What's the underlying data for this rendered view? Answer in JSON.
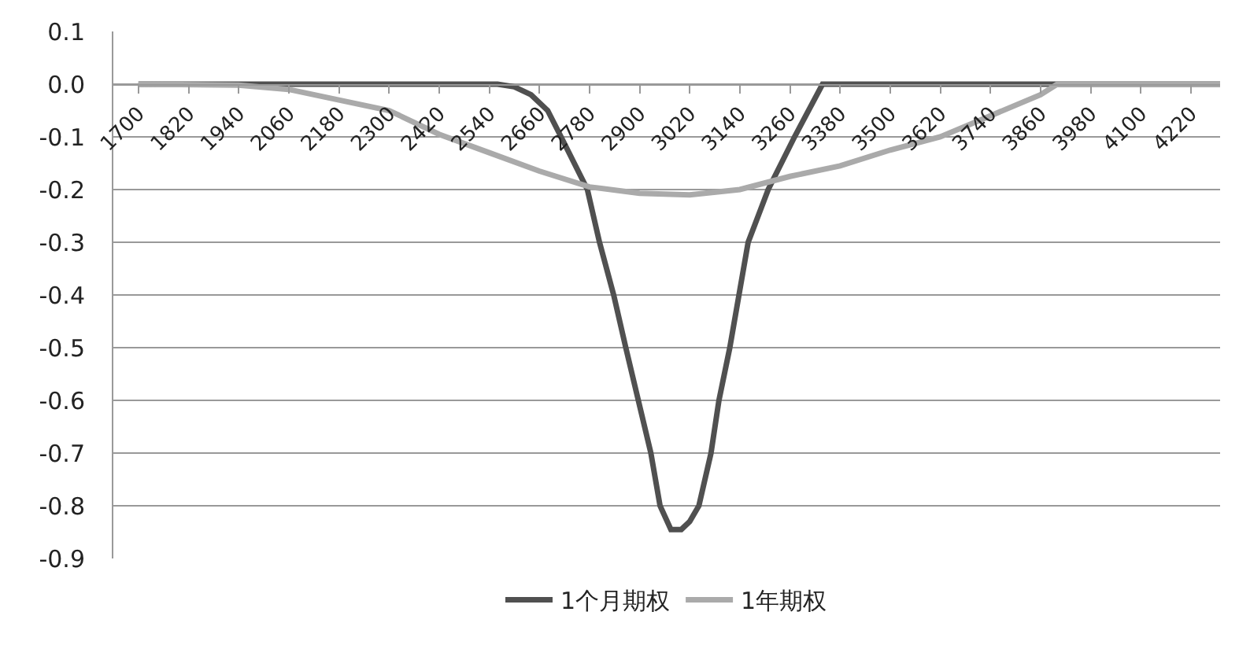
{
  "chart_data": {
    "type": "line",
    "legend": "bottom",
    "grid": "y",
    "marker": "none",
    "line_style": "solid",
    "xlim": [
      1640,
      4290
    ],
    "xticks": [
      1700,
      1820,
      1940,
      2060,
      2180,
      2300,
      2420,
      2540,
      2660,
      2780,
      2900,
      3020,
      3140,
      3260,
      3380,
      3500,
      3620,
      3740,
      3860,
      3980,
      4100,
      4220
    ],
    "ylim": [
      -0.9,
      0.1
    ],
    "yticks": [
      {
        "value": 0.1,
        "label": "0.1"
      },
      {
        "value": 0,
        "label": "0.0"
      },
      {
        "value": -0.1,
        "label": "-0.1"
      },
      {
        "value": -0.2,
        "label": "-0.2"
      },
      {
        "value": -0.3,
        "label": "-0.3"
      },
      {
        "value": -0.4,
        "label": "-0.4"
      },
      {
        "value": -0.5,
        "label": "-0.5"
      },
      {
        "value": -0.6,
        "label": "-0.6"
      },
      {
        "value": -0.7,
        "label": "-0.7"
      },
      {
        "value": -0.8,
        "label": "-0.8"
      },
      {
        "value": -0.9,
        "label": "-0.9"
      }
    ],
    "series": [
      {
        "name": "1个月期权",
        "color": "#505050",
        "x": [
          1700,
          2000,
          2300,
          2560,
          2600,
          2640,
          2680,
          2712,
          2775,
          2804,
          2838,
          2867,
          2897,
          2927,
          2949,
          2975,
          3000,
          3020,
          3042,
          3071,
          3090,
          3116,
          3138,
          3160,
          3208,
          3271,
          3338,
          3500,
          3800,
          4290
        ],
        "values": [
          0,
          0,
          0,
          0,
          -0.005,
          -0.02,
          -0.05,
          -0.1,
          -0.2,
          -0.3,
          -0.4,
          -0.5,
          -0.6,
          -0.7,
          -0.8,
          -0.845,
          -0.845,
          -0.83,
          -0.8,
          -0.7,
          -0.6,
          -0.5,
          -0.4,
          -0.3,
          -0.2,
          -0.1,
          0,
          0,
          0,
          0
        ]
      },
      {
        "name": "1年期权",
        "color": "#aaaaaa",
        "x": [
          1700,
          1940,
          2060,
          2180,
          2300,
          2420,
          2540,
          2660,
          2780,
          2900,
          3020,
          3140,
          3260,
          3380,
          3500,
          3620,
          3740,
          3860,
          3900,
          4100,
          4290
        ],
        "values": [
          0,
          -0.002,
          -0.01,
          -0.03,
          -0.05,
          -0.095,
          -0.13,
          -0.165,
          -0.195,
          -0.207,
          -0.21,
          -0.2,
          -0.175,
          -0.155,
          -0.125,
          -0.1,
          -0.06,
          -0.02,
          0,
          0,
          0
        ]
      }
    ]
  }
}
